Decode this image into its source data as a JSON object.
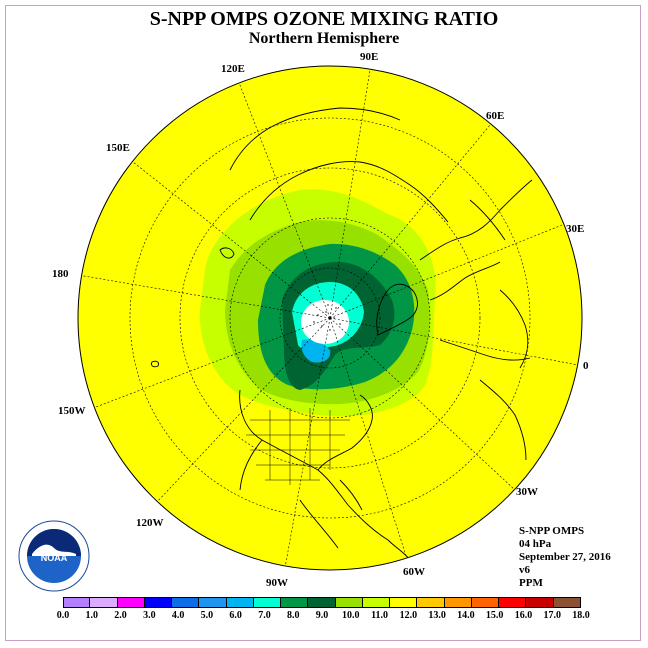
{
  "title": "S-NPP OMPS OZONE MIXING RATIO",
  "subtitle": "Northern Hemisphere",
  "longitude_labels": [
    "90E",
    "60E",
    "30E",
    "0",
    "30W",
    "60W",
    "90W",
    "120W",
    "150W",
    "180",
    "150E",
    "120E"
  ],
  "info": {
    "instrument": "S-NPP OMPS",
    "pressure": "04 hPa",
    "date": "September 27, 2016",
    "version": "v6",
    "units": "PPM"
  },
  "colorbar": {
    "ticks": [
      "0.0",
      "1.0",
      "2.0",
      "3.0",
      "4.0",
      "5.0",
      "6.0",
      "7.0",
      "8.0",
      "9.0",
      "10.0",
      "11.0",
      "12.0",
      "13.0",
      "14.0",
      "15.0",
      "16.0",
      "17.0",
      "18.0"
    ],
    "colors": [
      "#b67fff",
      "#dcaaff",
      "#ff00ff",
      "#0000ff",
      "#0a6ee6",
      "#1e96f0",
      "#00b4f0",
      "#00ffd2",
      "#009646",
      "#006432",
      "#98e000",
      "#c8ff00",
      "#ffff00",
      "#ffc800",
      "#ff9600",
      "#ff6400",
      "#ff0000",
      "#c80000",
      "#8c5032"
    ]
  },
  "logo_text": "NOAA",
  "logo_ring_text": "NATIONAL OCEANIC AND ATMOSPHERIC ADMINISTRATION • U.S. DEPARTMENT OF COMMERCE"
}
